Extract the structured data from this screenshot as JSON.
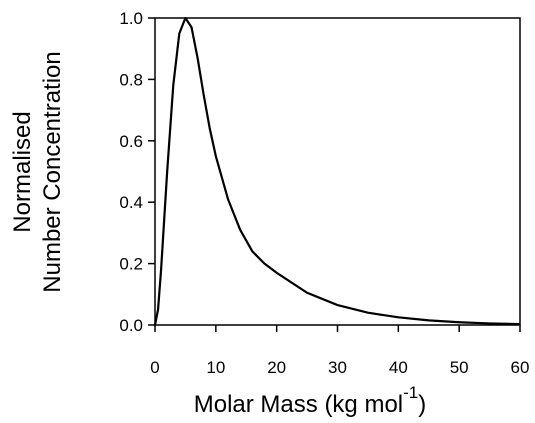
{
  "chart_data": {
    "type": "line",
    "x_label": [
      "Molar Mass (kg mol",
      "-1",
      ")"
    ],
    "y_label": [
      "Normalised",
      "Number Concentration"
    ],
    "x": [
      0,
      0.5,
      1,
      2,
      3,
      4,
      5,
      6,
      7,
      8,
      9,
      10,
      12,
      14,
      16,
      18,
      20,
      25,
      30,
      35,
      40,
      45,
      50,
      55,
      60
    ],
    "series": [
      {
        "color": "#000000",
        "values": [
          0,
          0.05,
          0.18,
          0.5,
          0.78,
          0.95,
          1.0,
          0.97,
          0.87,
          0.75,
          0.64,
          0.55,
          0.41,
          0.31,
          0.24,
          0.2,
          0.17,
          0.105,
          0.065,
          0.04,
          0.025,
          0.015,
          0.009,
          0.005,
          0.003
        ]
      }
    ],
    "xlim": [
      0,
      60
    ],
    "xticks": [
      0,
      10,
      20,
      30,
      40,
      50,
      60
    ],
    "ylim": [
      0,
      1
    ],
    "yticks": [
      {
        "value": 0,
        "label": "0.0"
      },
      0.2,
      0.4,
      0.6,
      0.8,
      {
        "value": 1,
        "label": "1.0"
      }
    ],
    "grid": false
  }
}
